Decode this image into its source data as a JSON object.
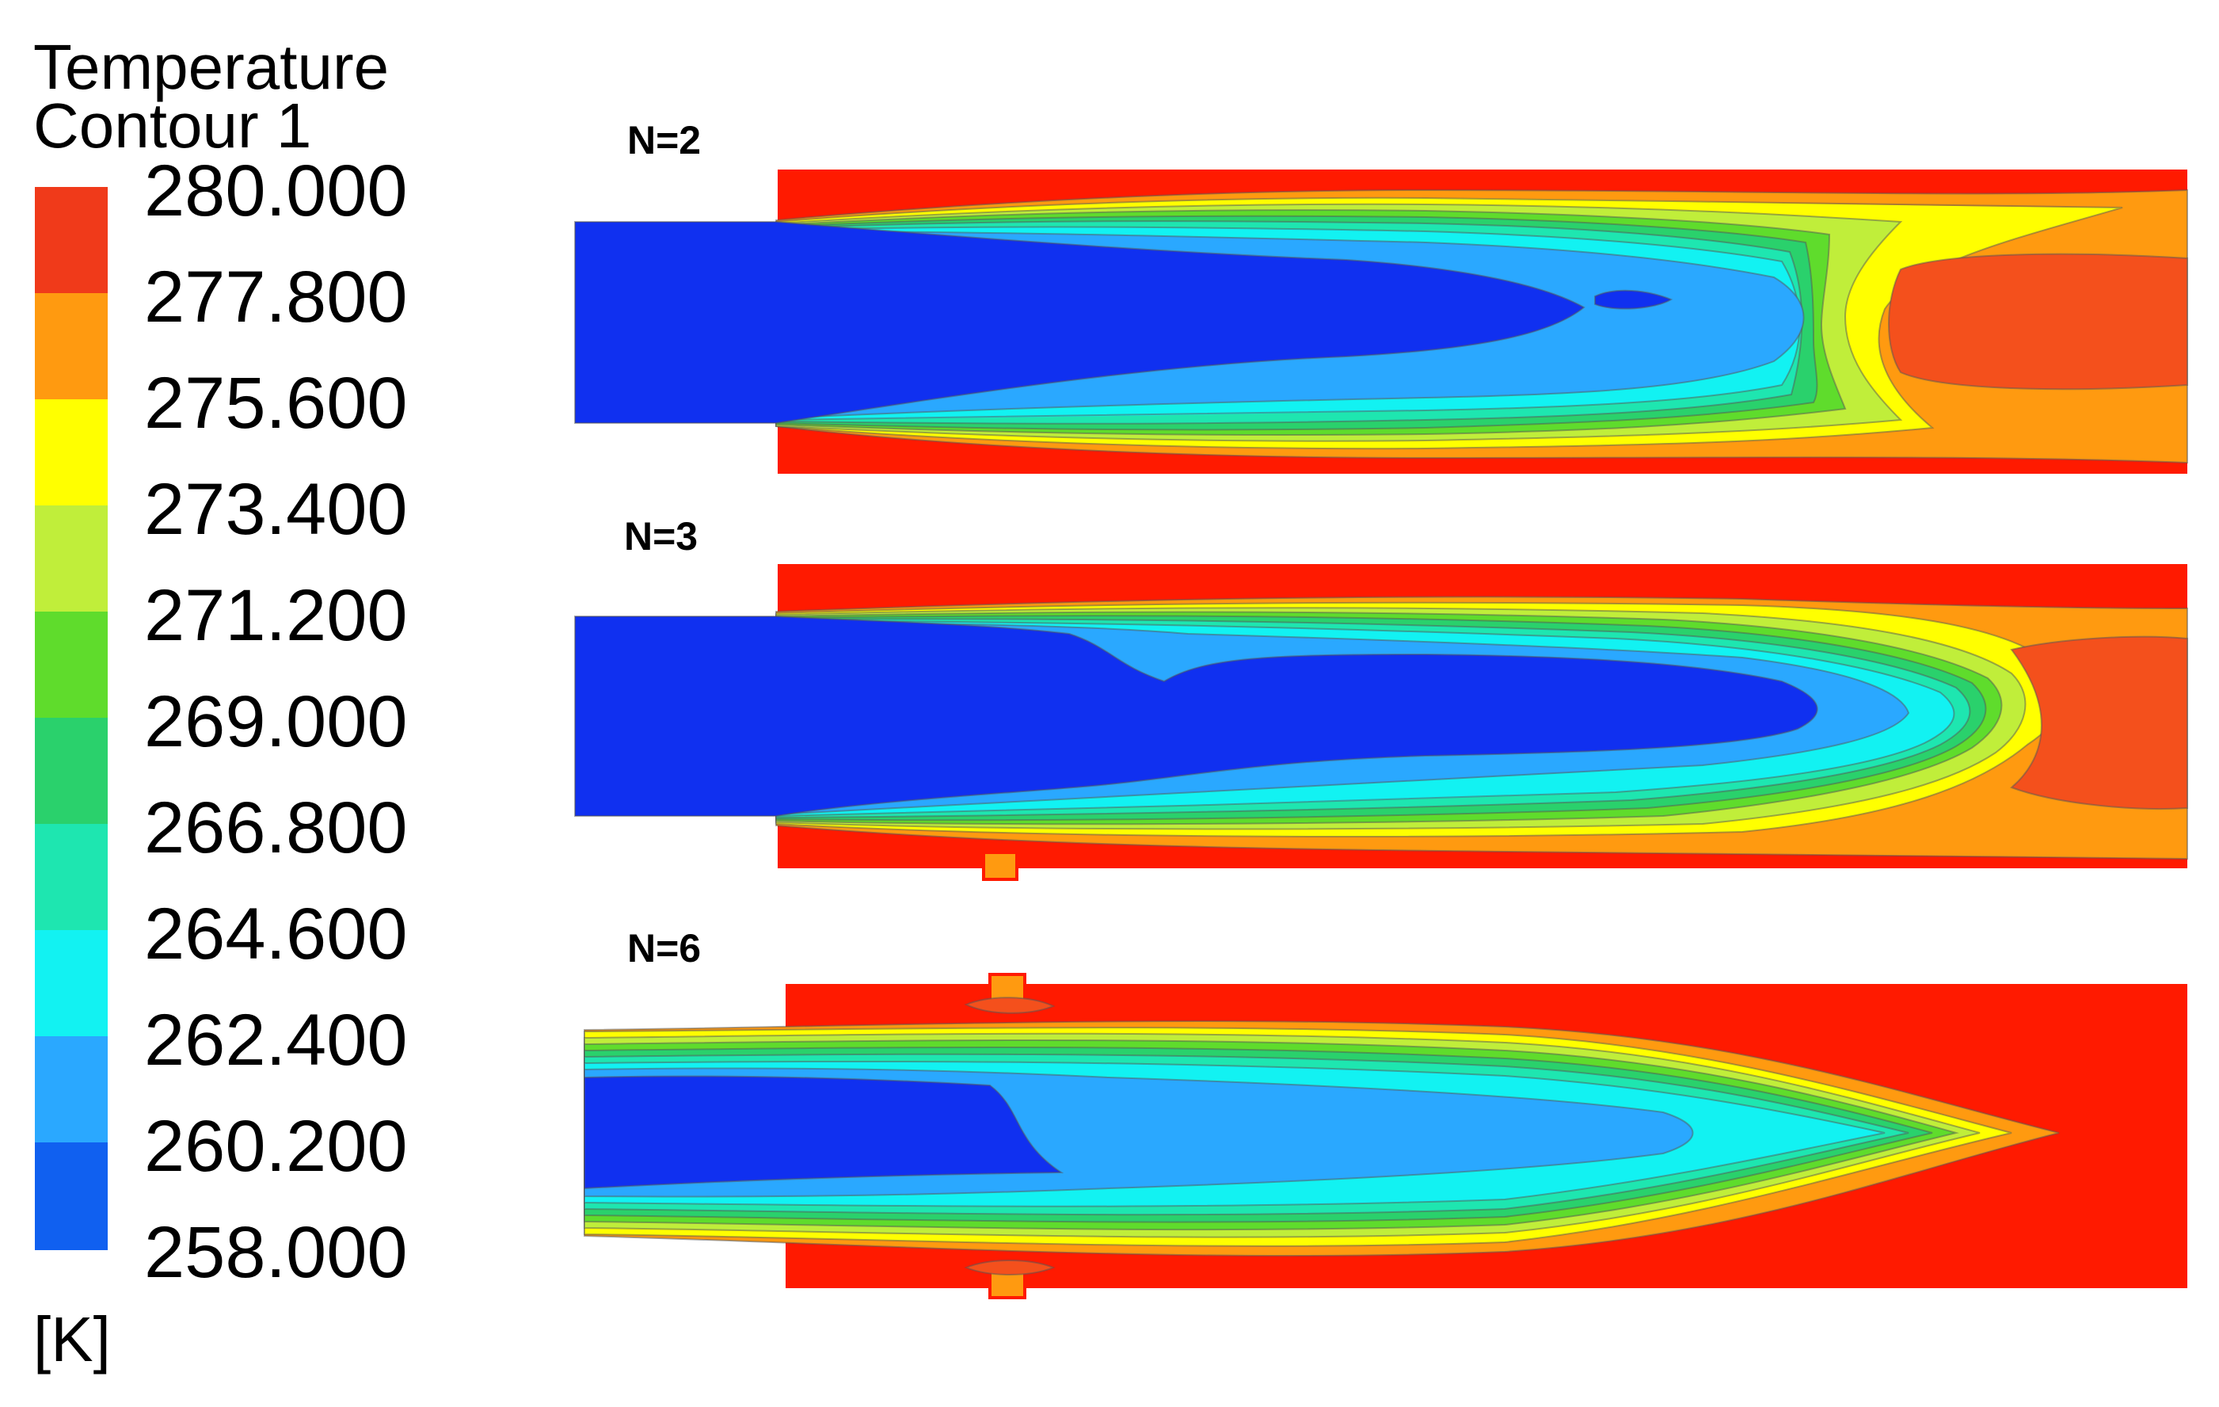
{
  "legend": {
    "title_line1": "Temperature",
    "title_line2": "Contour 1",
    "unit": "[K]",
    "tick_labels": [
      "280.000",
      "277.800",
      "275.600",
      "273.400",
      "271.200",
      "269.000",
      "266.800",
      "264.600",
      "262.400",
      "260.200",
      "258.000"
    ],
    "colors_top_to_bottom": [
      "#f03a1a",
      "#ff9a10",
      "#ffff00",
      "#c0ee3a",
      "#5fdc2c",
      "#2ad16c",
      "#1ee6b0",
      "#12f2f2",
      "#2aa8ff",
      "#1060f0"
    ]
  },
  "palette": {
    "T280": "#ff1a00",
    "T278": "#f4501c",
    "T276": "#ff9a10",
    "T274": "#ffff00",
    "T272": "#c0ee3a",
    "T270": "#5fdc2c",
    "T268": "#2ad16c",
    "T266": "#1ee6b0",
    "T264": "#12f2f2",
    "T262": "#2aa8ff",
    "T260": "#1030f0",
    "isoline": "#555555"
  },
  "cases": [
    {
      "id": "n2",
      "label": "N=2"
    },
    {
      "id": "n3",
      "label": "N=3"
    },
    {
      "id": "n6",
      "label": "N=6"
    }
  ]
}
